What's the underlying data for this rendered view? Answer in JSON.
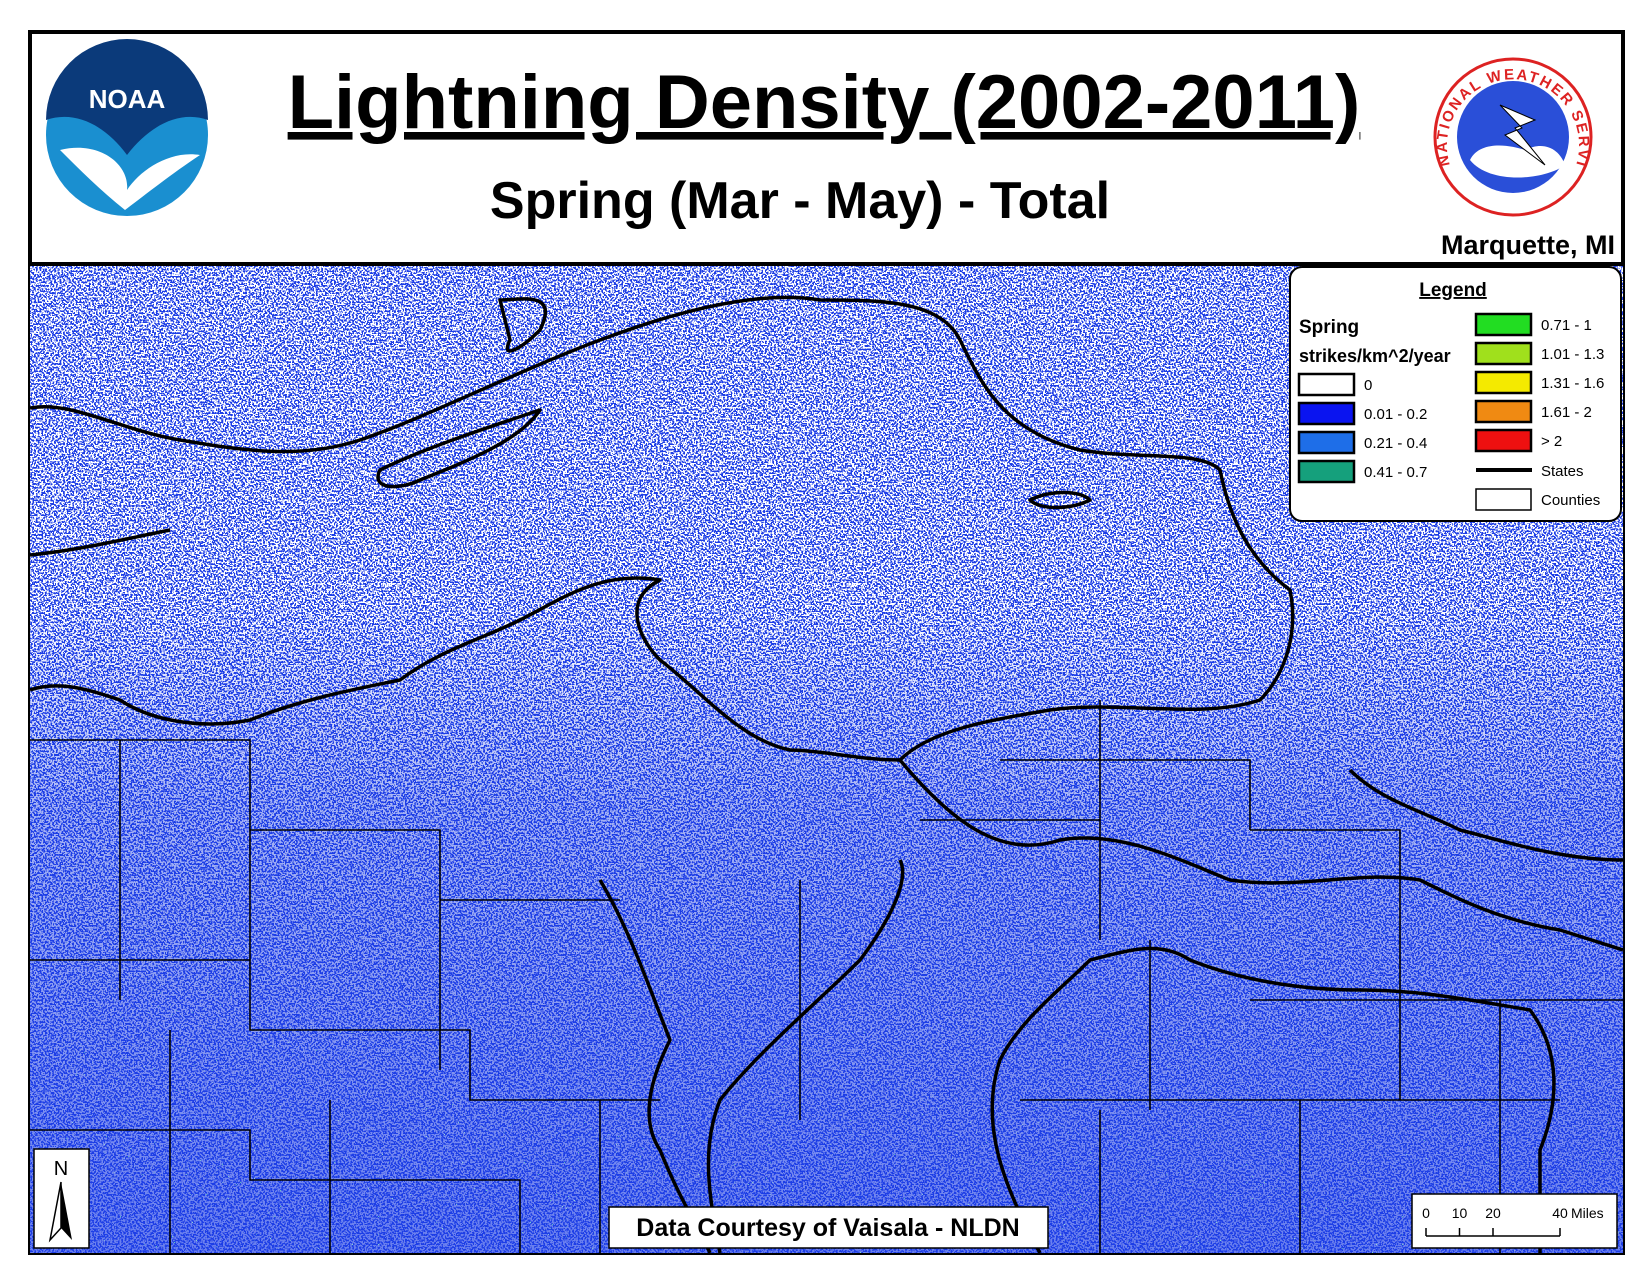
{
  "header": {
    "title": "Lightning Density (2002-2011)",
    "subtitle": "Spring (Mar - May) - Total",
    "office": "Marquette, MI",
    "left_logo": "NOAA",
    "right_logo": "NATIONAL WEATHER SERVICE"
  },
  "legend": {
    "title": "Legend",
    "season": "Spring",
    "units": "strikes/km^2/year",
    "items": [
      {
        "label": "0",
        "color": "#ffffff"
      },
      {
        "label": "0.01 - 0.2",
        "color": "#0a14f0"
      },
      {
        "label": "0.21 - 0.4",
        "color": "#1e6ee8"
      },
      {
        "label": "0.41 - 0.7",
        "color": "#15a07c"
      },
      {
        "label": "0.71 - 1",
        "color": "#22dd22"
      },
      {
        "label": "1.01 - 1.3",
        "color": "#a0e01c"
      },
      {
        "label": "1.31 - 1.6",
        "color": "#f4ea00"
      },
      {
        "label": "1.61 - 2",
        "color": "#f08a12"
      },
      {
        "label": "> 2",
        "color": "#ee1010"
      }
    ],
    "states": "States",
    "counties": "Counties"
  },
  "credit": "Data Courtesy of Vaisala - NLDN",
  "north": "N",
  "scale": {
    "ticks": [
      0,
      10,
      20,
      40
    ],
    "unit": "Miles"
  }
}
